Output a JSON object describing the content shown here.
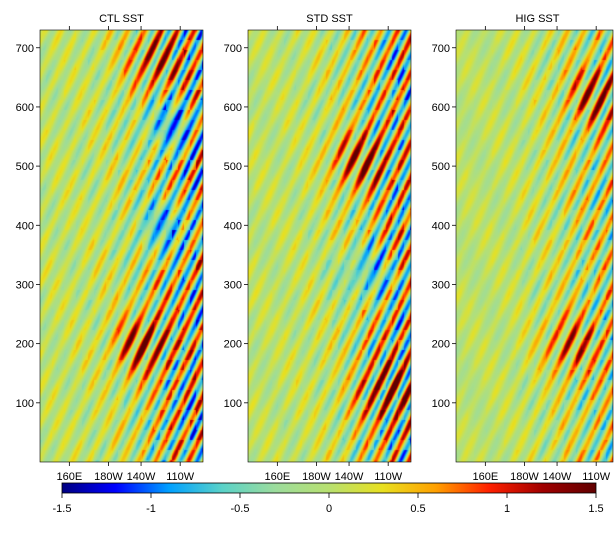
{
  "chart_data": {
    "type": "heatmap",
    "panels": [
      {
        "title": "CTL SST",
        "amplitude_profile": [
          0.25,
          0.25,
          0.3,
          0.35,
          0.45,
          0.6,
          0.85,
          1.0,
          1.1
        ],
        "blobs": [
          [
            0.62,
            200,
            1.2
          ],
          [
            0.75,
            400,
            -1.0
          ],
          [
            0.7,
            680,
            0.9
          ],
          [
            0.8,
            570,
            -1.1
          ]
        ]
      },
      {
        "title": "STD SST",
        "amplitude_profile": [
          0.2,
          0.2,
          0.25,
          0.3,
          0.4,
          0.55,
          0.8,
          0.95,
          1.0
        ],
        "blobs": [
          [
            0.68,
            510,
            1.1
          ],
          [
            0.72,
            320,
            -0.9
          ],
          [
            0.85,
            120,
            1.0
          ]
        ]
      },
      {
        "title": "HIG SST",
        "amplitude_profile": [
          0.15,
          0.15,
          0.2,
          0.25,
          0.35,
          0.45,
          0.6,
          0.75,
          0.85
        ],
        "blobs": [
          [
            0.7,
            200,
            0.9
          ],
          [
            0.85,
            620,
            1.0
          ]
        ]
      }
    ],
    "x_ticks": [
      "160E",
      "180W",
      "140W",
      "110W"
    ],
    "x_tick_positions": [
      0.18,
      0.42,
      0.62,
      0.86
    ],
    "y_ticks": [
      100,
      200,
      300,
      400,
      500,
      600,
      700
    ],
    "ylim": [
      0,
      730
    ],
    "colorbar": {
      "min": -1.5,
      "max": 1.5,
      "ticks": [
        "-1.5",
        "-1",
        "-0.5",
        "0",
        "0.5",
        "1",
        "1.5"
      ],
      "colors": [
        "#000080",
        "#0000ff",
        "#00a0ff",
        "#5ad2c8",
        "#9cdc9c",
        "#b8e070",
        "#e8e020",
        "#ffa000",
        "#ff2000",
        "#a00000",
        "#600000"
      ]
    }
  }
}
